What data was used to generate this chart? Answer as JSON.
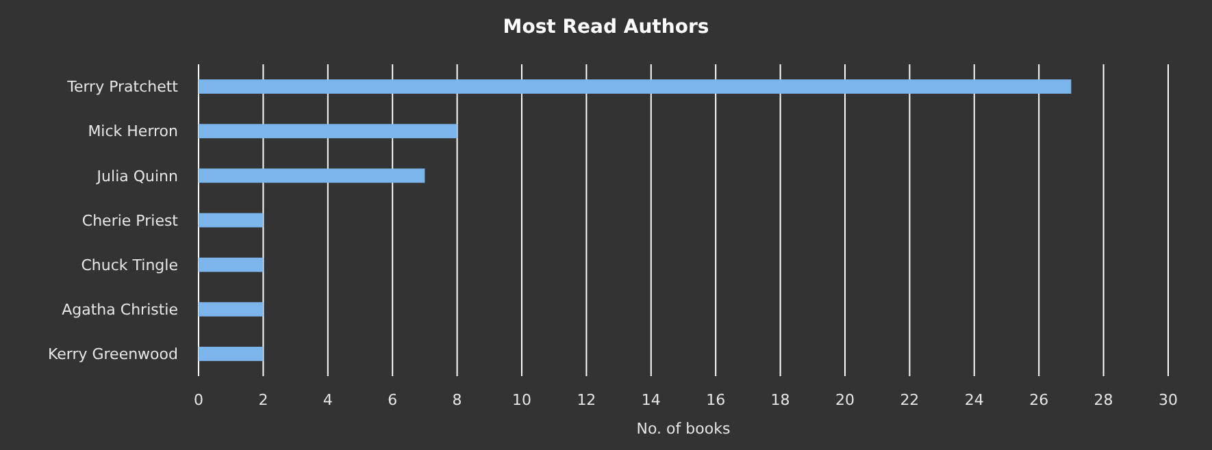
{
  "chart_data": {
    "type": "bar",
    "orientation": "horizontal",
    "title": "Most Read Authors",
    "xlabel": "No. of books",
    "categories": [
      "Terry Pratchett",
      "Mick Herron",
      "Julia Quinn",
      "Cherie Priest",
      "Chuck Tingle",
      "Agatha Christie",
      "Kerry Greenwood"
    ],
    "values": [
      27,
      8,
      7,
      2,
      2,
      2,
      2
    ],
    "color": "#7cb5ec",
    "xlim": [
      0,
      30
    ],
    "xticks": [
      0,
      2,
      4,
      6,
      8,
      10,
      12,
      14,
      16,
      18,
      20,
      22,
      24,
      26,
      28,
      30
    ],
    "grid": "x"
  }
}
